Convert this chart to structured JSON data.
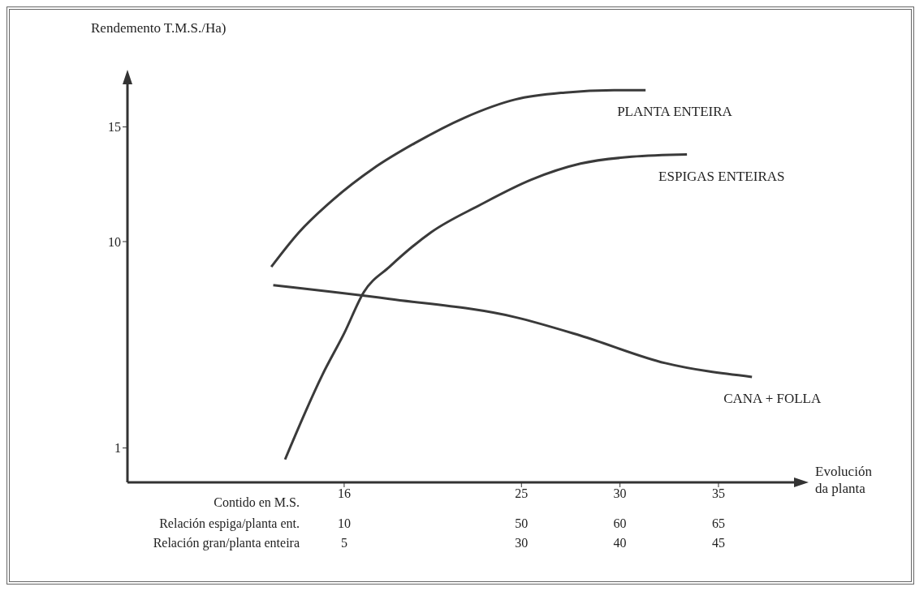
{
  "chart_data": {
    "type": "line",
    "ylabel": "Rendemento T.M.S./Ha)",
    "xlabel": "Contido en M.S.",
    "annotations": [
      "Evolución da planta",
      "Relación espiga/planta ent.",
      "10",
      "50",
      "60",
      "65",
      "Relación gran/planta enteira",
      "5",
      "30",
      "40",
      "45"
    ],
    "xlim": [
      5,
      39
    ],
    "xticks": [
      16,
      25,
      30,
      35
    ],
    "ylim": [
      -0.5,
      17
    ],
    "yticks": [
      1,
      10,
      15
    ],
    "grid": false,
    "legend": false,
    "marker": "none",
    "line_style": "solid",
    "series": [
      {
        "name": "PLANTA ENTEIRA",
        "color": "#3a3a3a",
        "x": [
          12.3,
          13.7,
          15.4,
          17.5,
          19.6,
          22.1,
          24.7,
          27.2,
          29.7,
          31.3
        ],
        "values": [
          8.9,
          10.4,
          11.8,
          13.2,
          14.3,
          15.4,
          16.2,
          16.5,
          16.6,
          16.6
        ]
      },
      {
        "name": "ESPIGAS ENTEIRAS",
        "color": "#3a3a3a",
        "x": [
          13.0,
          14.9,
          16.0,
          17.0,
          18.3,
          20.4,
          22.9,
          25.5,
          28.0,
          30.6,
          33.4
        ],
        "values": [
          0.5,
          4.2,
          6.0,
          7.8,
          8.9,
          10.4,
          11.6,
          12.7,
          13.4,
          13.7,
          13.8
        ]
      },
      {
        "name": "CANA + FOLLA",
        "color": "#3a3a3a",
        "x": [
          12.4,
          18.3,
          24.7,
          28.0,
          32.3,
          36.7
        ],
        "values": [
          8.1,
          7.5,
          6.7,
          5.9,
          4.7,
          4.1
        ]
      }
    ]
  }
}
